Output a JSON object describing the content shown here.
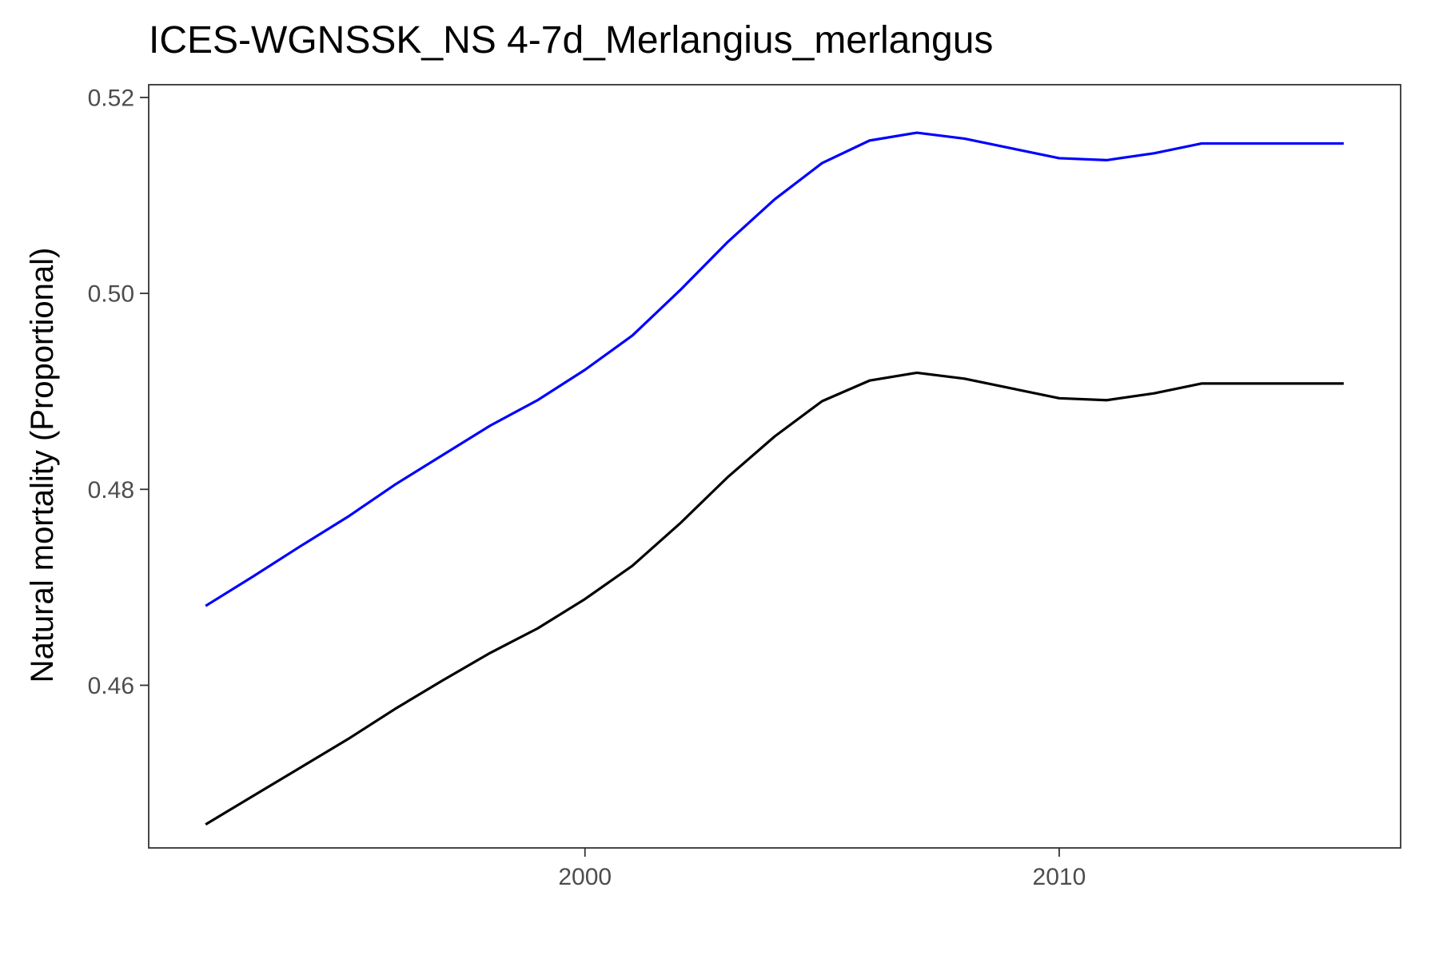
{
  "chart_data": {
    "type": "line",
    "title": "ICES-WGNSSK_NS 4-7d_Merlangius_merlangus",
    "xlabel": "",
    "ylabel": "Natural mortality (Proportional)",
    "xlim": [
      1990.8,
      2017.2
    ],
    "ylim": [
      0.4434,
      0.5213
    ],
    "x_ticks": [
      2000,
      2010
    ],
    "x_tick_labels": [
      "2000",
      "2010"
    ],
    "y_ticks": [
      0.46,
      0.48,
      0.5,
      0.52
    ],
    "y_tick_labels": [
      "0.46",
      "0.48",
      "0.50",
      "0.52"
    ],
    "grid": false,
    "legend": "none",
    "x": [
      1992,
      1993,
      1994,
      1995,
      1996,
      1997,
      1998,
      1999,
      2000,
      2001,
      2002,
      2003,
      2004,
      2005,
      2006,
      2007,
      2008,
      2009,
      2010,
      2011,
      2012,
      2013,
      2014,
      2015,
      2016
    ],
    "series": [
      {
        "color": "#0000ff",
        "values": [
          0.4681,
          0.4711,
          0.4742,
          0.4772,
          0.4805,
          0.4835,
          0.4865,
          0.4891,
          0.4922,
          0.4957,
          0.5003,
          0.5052,
          0.5096,
          0.5133,
          0.5156,
          0.5164,
          0.5158,
          0.5148,
          0.5138,
          0.5136,
          0.5143,
          0.5153,
          0.5153,
          0.5153,
          0.5153
        ]
      },
      {
        "color": "#000000",
        "values": [
          0.4458,
          0.4487,
          0.4516,
          0.4545,
          0.4576,
          0.4605,
          0.4633,
          0.4658,
          0.4688,
          0.4722,
          0.4765,
          0.4812,
          0.4854,
          0.489,
          0.4911,
          0.4919,
          0.4913,
          0.4903,
          0.4893,
          0.4891,
          0.4898,
          0.4908,
          0.4908,
          0.4908,
          0.4908
        ]
      }
    ]
  }
}
